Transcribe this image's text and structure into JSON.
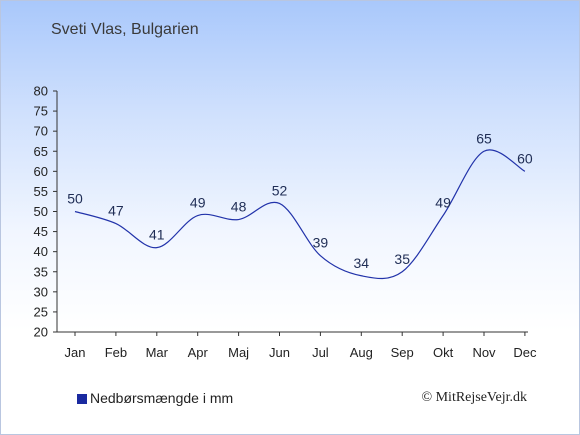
{
  "colors": {
    "line": "#2233aa",
    "swatch": "#1a2aa0",
    "axis": "#333333",
    "tick_text": "#222222",
    "data_label": "#1f2d55"
  },
  "chart_data": {
    "type": "line",
    "title": "Sveti Vlas, Bulgarien",
    "categories": [
      "Jan",
      "Feb",
      "Mar",
      "Apr",
      "Maj",
      "Jun",
      "Jul",
      "Aug",
      "Sep",
      "Okt",
      "Nov",
      "Dec"
    ],
    "series": [
      {
        "name": "Nedbørsmængde i mm",
        "values": [
          50,
          47,
          41,
          49,
          48,
          52,
          39,
          34,
          35,
          49,
          65,
          60
        ]
      }
    ],
    "ylim": [
      20,
      80
    ],
    "yticks": [
      20,
      25,
      30,
      35,
      40,
      45,
      50,
      55,
      60,
      65,
      70,
      75,
      80
    ],
    "grid": false,
    "legend_position": "bottom-left",
    "data_labels": true
  },
  "legend": {
    "label": "Nedbørsmængde i mm"
  },
  "credit": "© MitRejseVejr.dk"
}
